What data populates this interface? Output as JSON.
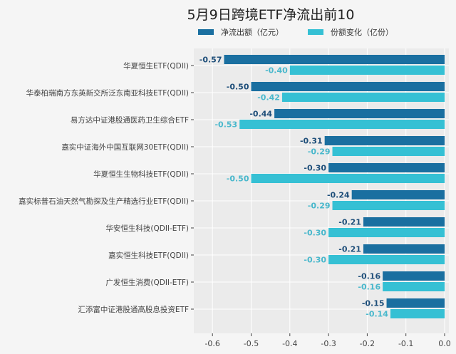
{
  "chart_data": {
    "type": "bar",
    "orientation": "horizontal",
    "title": "5月9日跨境ETF净流出前10",
    "categories": [
      "华夏恒生ETF(QDII)",
      "华泰柏瑞南方东英新交所泛东南亚科技ETF(QDII)",
      "易方达中证港股通医药卫生综合ETF",
      "嘉实中证海外中国互联网30ETF(QDII)",
      "华夏恒生生物科技ETF(QDII)",
      "嘉实标普石油天然气勘探及生产精选行业ETF(QDII)",
      "华安恒生科技(QDII-ETF)",
      "嘉实恒生科技ETF(QDII)",
      "广发恒生消费(QDII-ETF)",
      "汇添富中证港股通高股息投资ETF"
    ],
    "series": [
      {
        "name": "净流出额（亿元）",
        "color": "#1a6fa0",
        "label_color": "#1f4f7a",
        "values": [
          -0.57,
          -0.5,
          -0.44,
          -0.31,
          -0.3,
          -0.24,
          -0.21,
          -0.21,
          -0.16,
          -0.15
        ]
      },
      {
        "name": "份额变化（亿份）",
        "color": "#35c0d4",
        "label_color": "#4ab8cc",
        "values": [
          -0.4,
          -0.42,
          -0.53,
          -0.29,
          -0.5,
          -0.29,
          -0.3,
          -0.3,
          -0.16,
          -0.14
        ]
      }
    ],
    "xlim": [
      -0.65,
      0.0
    ],
    "xticks": [
      "-0.6",
      "-0.5",
      "-0.4",
      "-0.3",
      "-0.2",
      "-0.1",
      "0.0"
    ],
    "xtick_values": [
      -0.6,
      -0.5,
      -0.4,
      -0.3,
      -0.2,
      -0.1,
      0.0
    ],
    "grid": true,
    "legend_position": "top",
    "plot_background": "#ebebeb"
  }
}
